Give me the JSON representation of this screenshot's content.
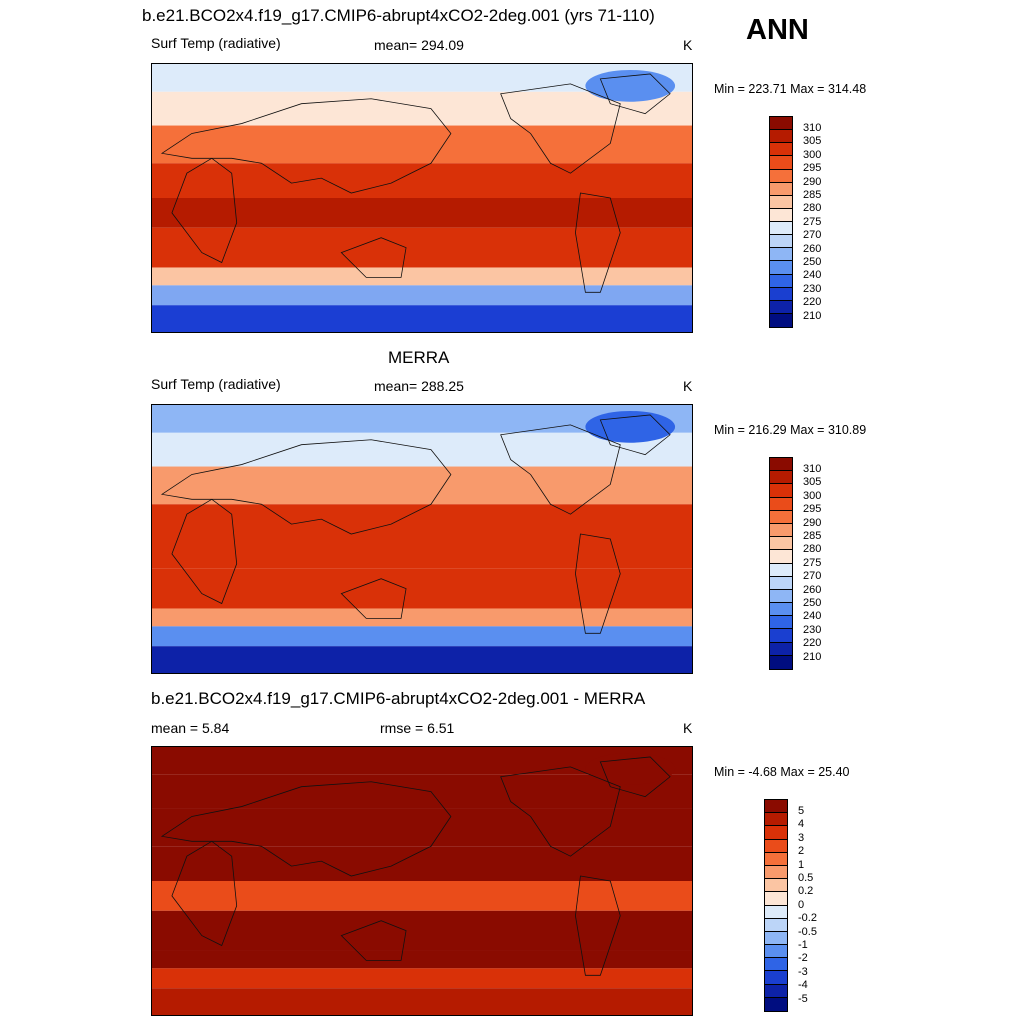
{
  "season": "ANN",
  "panels": [
    {
      "title": "b.e21.BCO2x4.f19_g17.CMIP6-abrupt4xCO2-2deg.001 (yrs 71-110)",
      "left_label": "Surf Temp (radiative)",
      "center_label": "mean= 294.09",
      "units": "K",
      "minmax": "Min = 223.71 Max = 314.48",
      "colorbar": {
        "labels": [
          "310",
          "305",
          "300",
          "295",
          "290",
          "285",
          "280",
          "275",
          "270",
          "260",
          "250",
          "240",
          "230",
          "220",
          "210"
        ],
        "colors": [
          "#8a0b00",
          "#b51b00",
          "#d93108",
          "#ea4c1a",
          "#f5703a",
          "#f89a6c",
          "#fbc5a3",
          "#fde6d6",
          "#ddebfa",
          "#bcd5f8",
          "#8eb6f5",
          "#5a8ff0",
          "#2f64e6",
          "#1a3fd0",
          "#0d22a8",
          "#000d80"
        ]
      },
      "map_colors": {
        "polar_south": "#1b3ed3",
        "subpolar_south": "#7fa7f2",
        "mid_south": "#fbc5a3",
        "tropics": "#d93108",
        "warm_pool": "#b51b00",
        "mid_north": "#f5703a",
        "subpolar_north": "#fde6d6",
        "arctic": "#ddebfa",
        "greenland": "#5a8ff0"
      }
    },
    {
      "title": "MERRA",
      "left_label": "Surf Temp (radiative)",
      "center_label": "mean= 288.25",
      "units": "K",
      "minmax": "Min = 216.29 Max = 310.89",
      "colorbar": {
        "labels": [
          "310",
          "305",
          "300",
          "295",
          "290",
          "285",
          "280",
          "275",
          "270",
          "260",
          "250",
          "240",
          "230",
          "220",
          "210"
        ],
        "colors": [
          "#8a0b00",
          "#b51b00",
          "#d93108",
          "#ea4c1a",
          "#f5703a",
          "#f89a6c",
          "#fbc5a3",
          "#fde6d6",
          "#ddebfa",
          "#bcd5f8",
          "#8eb6f5",
          "#5a8ff0",
          "#2f64e6",
          "#1a3fd0",
          "#0d22a8",
          "#000d80"
        ]
      },
      "map_colors": {
        "polar_south": "#0d22a8",
        "subpolar_south": "#5a8ff0",
        "mid_south": "#f89a6c",
        "tropics": "#d93108",
        "warm_pool": "#d93108",
        "mid_north": "#f89a6c",
        "subpolar_north": "#ddebfa",
        "arctic": "#8eb6f5",
        "greenland": "#2f64e6"
      }
    },
    {
      "title": "b.e21.BCO2x4.f19_g17.CMIP6-abrupt4xCO2-2deg.001 - MERRA",
      "left_label": "mean =   5.84",
      "center_label": "rmse =   6.51",
      "units": "K",
      "minmax": "Min =  -4.68 Max =  25.40",
      "colorbar": {
        "labels": [
          "5",
          "4",
          "3",
          "2",
          "1",
          "0.5",
          "0.2",
          "0",
          "-0.2",
          "-0.5",
          "-1",
          "-2",
          "-3",
          "-4",
          "-5"
        ],
        "colors": [
          "#8a0b00",
          "#b51b00",
          "#d93108",
          "#ea4c1a",
          "#f5703a",
          "#f89a6c",
          "#fbc5a3",
          "#fde6d6",
          "#ddebfa",
          "#bcd5f8",
          "#8eb6f5",
          "#5a8ff0",
          "#2f64e6",
          "#1a3fd0",
          "#0d22a8",
          "#000d80"
        ]
      },
      "map_colors": {
        "polar_south": "#b51b00",
        "subpolar_south": "#d93108",
        "mid_south": "#8a0b00",
        "tropics": "#8a0b00",
        "warm_pool": "#ea4c1a",
        "mid_north": "#8a0b00",
        "subpolar_north": "#8a0b00",
        "arctic": "#8a0b00",
        "greenland": "#8a0b00"
      }
    }
  ]
}
